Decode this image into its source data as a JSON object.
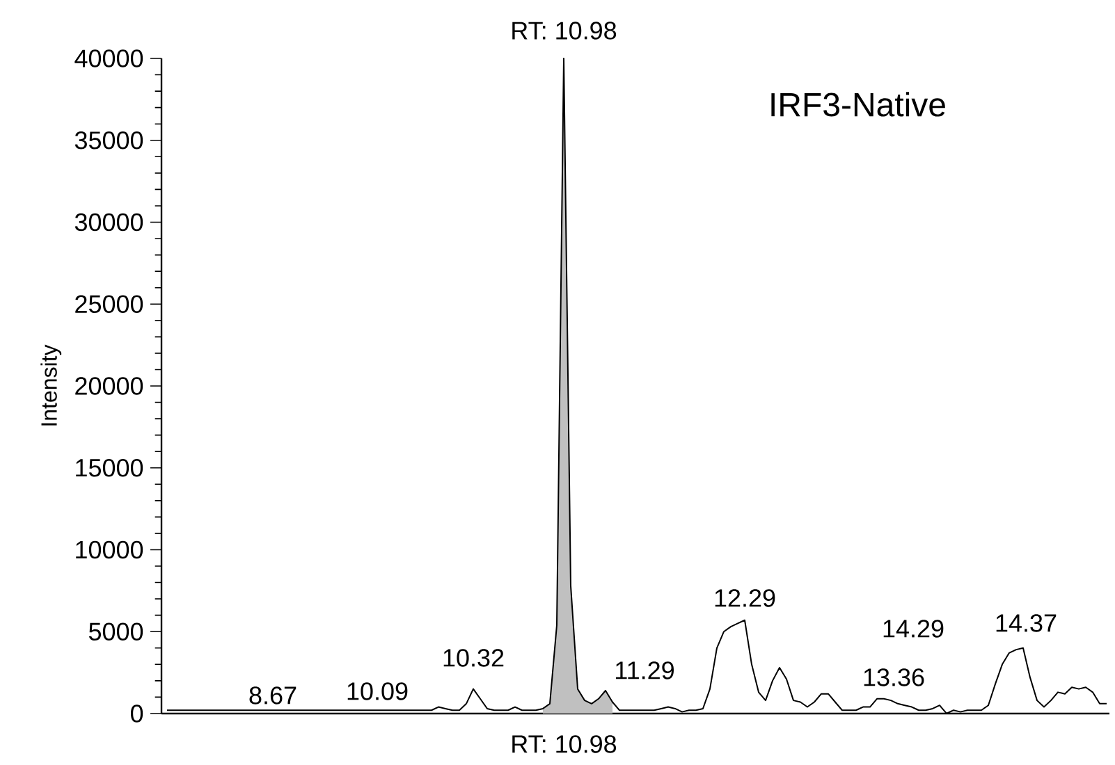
{
  "chart_data": {
    "type": "line",
    "title": "IRF3-Native",
    "ylabel": "Intensity",
    "categories": [
      null,
      null,
      null,
      null,
      null,
      null,
      null,
      null,
      null,
      null,
      null,
      null,
      null,
      null,
      null,
      null,
      null,
      null,
      null,
      null,
      null,
      null,
      null,
      null,
      null,
      null,
      null,
      null,
      null,
      null,
      null,
      null,
      null,
      null,
      null,
      null,
      null,
      null,
      null,
      null,
      null,
      null,
      null,
      null,
      null,
      null,
      null,
      null,
      null,
      null,
      null,
      null,
      null,
      null,
      null,
      null,
      null,
      null,
      null,
      null,
      null,
      null,
      null,
      null,
      null,
      null,
      null,
      null,
      null,
      null,
      null,
      null,
      null,
      null,
      null,
      null,
      null,
      null,
      null,
      null,
      null,
      null,
      null,
      null,
      null,
      null,
      null,
      null,
      null,
      null,
      null,
      null,
      null,
      null,
      null,
      null,
      null,
      null,
      null,
      null,
      null,
      null,
      null,
      null,
      null,
      null,
      null,
      null,
      null,
      null,
      null,
      null,
      null,
      null,
      null,
      null,
      null,
      null,
      null,
      null,
      null,
      null,
      null,
      null,
      null,
      null,
      null,
      null,
      null,
      null,
      null,
      null,
      null,
      null,
      null,
      null
    ],
    "series": [
      {
        "color": "#000000",
        "values": [
          200,
          200,
          200,
          200,
          200,
          200,
          200,
          200,
          200,
          200,
          200,
          200,
          200,
          200,
          200,
          200,
          200,
          200,
          200,
          200,
          200,
          200,
          200,
          200,
          200,
          200,
          200,
          200,
          200,
          200,
          200,
          200,
          200,
          200,
          200,
          200,
          200,
          200,
          200,
          400,
          300,
          200,
          200,
          600,
          1500,
          900,
          300,
          200,
          200,
          200,
          400,
          200,
          200,
          200,
          300,
          600,
          5400,
          40000,
          7800,
          1500,
          800,
          600,
          900,
          1400,
          700,
          200,
          200,
          200,
          200,
          200,
          200,
          300,
          400,
          300,
          100,
          200,
          200,
          300,
          1500,
          4000,
          5000,
          5300,
          5500,
          5700,
          3000,
          1300,
          800,
          2000,
          2800,
          2100,
          800,
          700,
          400,
          700,
          1200,
          1200,
          700,
          200,
          200,
          200,
          400,
          400,
          900,
          900,
          800,
          600,
          500,
          400,
          200,
          200,
          300,
          500,
          0,
          200,
          100,
          200,
          200,
          200,
          500,
          1800,
          3000,
          3700,
          3900,
          4000,
          2200,
          800,
          400,
          800,
          1300,
          1200,
          1600,
          1500,
          1600,
          1300,
          600,
          600
        ]
      },
      {
        "type": "area",
        "color": "#c0c0c0",
        "values": [
          null,
          null,
          null,
          null,
          null,
          null,
          null,
          null,
          null,
          null,
          null,
          null,
          null,
          null,
          null,
          null,
          null,
          null,
          null,
          null,
          null,
          null,
          null,
          null,
          null,
          null,
          null,
          null,
          null,
          null,
          null,
          null,
          null,
          null,
          null,
          null,
          null,
          null,
          null,
          null,
          null,
          null,
          null,
          null,
          null,
          null,
          null,
          null,
          null,
          null,
          null,
          null,
          null,
          null,
          300,
          600,
          5400,
          40000,
          7800,
          1500,
          800,
          600,
          900,
          1400,
          700,
          null,
          null,
          null,
          null,
          null,
          null,
          null,
          null,
          null,
          null,
          null,
          null,
          null,
          null,
          null,
          null,
          null,
          null,
          null,
          null,
          null,
          null,
          null,
          null,
          null,
          null,
          null,
          null,
          null,
          null,
          null,
          null,
          null,
          null,
          null,
          null,
          null,
          null,
          null,
          null,
          null,
          null,
          null,
          null,
          null,
          null,
          null,
          null,
          null,
          null,
          null,
          null,
          null,
          null,
          null,
          null,
          null,
          null,
          null,
          null,
          null,
          null,
          null,
          null,
          null,
          null,
          null,
          null,
          null,
          null,
          null
        ]
      }
    ],
    "ylim": [
      0,
      40000
    ],
    "yticks": [
      0,
      5000,
      10000,
      15000,
      20000,
      25000,
      30000,
      35000,
      40000
    ],
    "annotations": [
      "RT: 10.98",
      "8.67",
      "10.09",
      "10.32",
      "11.29",
      "12.29",
      "13.36",
      "14.29",
      "14.37",
      "RT: 10.98"
    ]
  }
}
